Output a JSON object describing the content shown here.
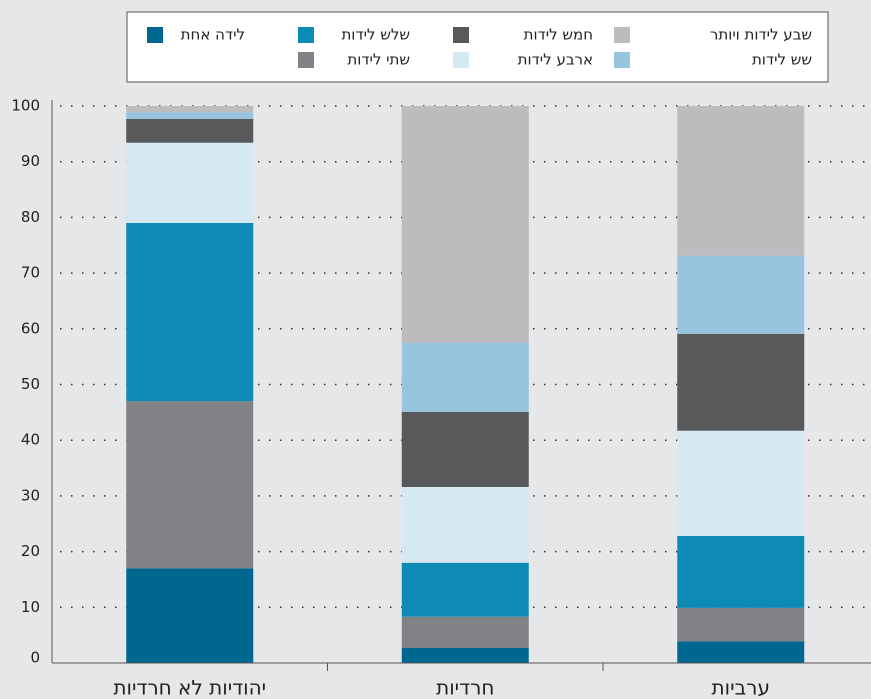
{
  "chart_data": {
    "type": "stacked_bar",
    "categories": [
      "יהודיות לא חרדיות",
      "חרדיות",
      "ערביות"
    ],
    "series": [
      {
        "name": "לידה אחת",
        "color": "#006890",
        "values": [
          17,
          2.7,
          3.9
        ]
      },
      {
        "name": "שתי לידות",
        "color": "#808285",
        "values": [
          30,
          5.6,
          6.0
        ]
      },
      {
        "name": "שלש לידות",
        "color": "#0e8bb5",
        "values": [
          32,
          9.7,
          12.9
        ]
      },
      {
        "name": "ארבע לידות",
        "color": "#d6e9f3",
        "values": [
          14.4,
          13.6,
          18.9
        ]
      },
      {
        "name": "חמש לידות",
        "color": "#58595b",
        "values": [
          4.3,
          13.5,
          17.4
        ]
      },
      {
        "name": "שש לידות",
        "color": "#97c4de",
        "values": [
          1.2,
          12.4,
          14.0
        ]
      },
      {
        "name": "שבע לידות ויותר",
        "color": "#bcbcbf",
        "values": [
          1.1,
          42.5,
          26.9
        ]
      }
    ],
    "ylim": [
      0,
      100
    ],
    "yticks": [
      0,
      10,
      20,
      30,
      40,
      50,
      60,
      70,
      80,
      90,
      100
    ],
    "grid": true,
    "legend": "top"
  }
}
